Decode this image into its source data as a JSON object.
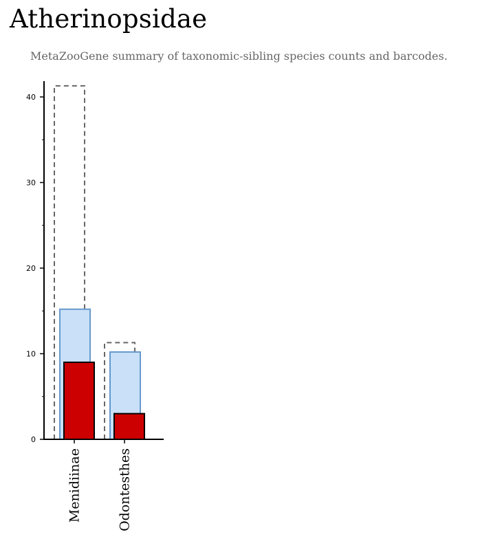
{
  "page": {
    "title": "Atherinopsidae",
    "subtitle": "MetaZooGene summary of taxonomic-sibling species counts and barcodes."
  },
  "colors": {
    "total_outline": "#666666",
    "species_fill": "#c9e0f8",
    "species_stroke": "#6699cc",
    "barcoded_fill": "#cc0000",
    "barcoded_stroke": "#000000",
    "axis": "#000000"
  },
  "chart_data": {
    "type": "bar",
    "categories": [
      "Menidiinae",
      "Odontesthes"
    ],
    "series": [
      {
        "key": "total",
        "values": [
          41.3,
          11.3
        ]
      },
      {
        "key": "species",
        "values": [
          15.2,
          10.2
        ]
      },
      {
        "key": "barcoded",
        "values": [
          9,
          3
        ]
      }
    ],
    "yticks": [
      0,
      10,
      20,
      30,
      40
    ],
    "ylim": [
      0,
      42
    ],
    "grid": false
  }
}
